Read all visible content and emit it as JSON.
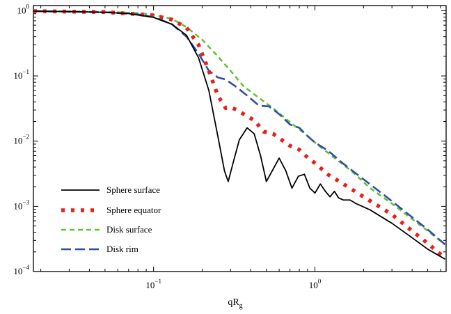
{
  "chart_data": {
    "type": "line",
    "xscale": "log",
    "yscale": "log",
    "xlim": [
      0.018,
      6.5
    ],
    "ylim": [
      0.0001,
      1.2
    ],
    "xlabel": {
      "main": "qR",
      "sub": "g"
    },
    "ylabel": "",
    "grid": false,
    "legend_position": "bottom-left",
    "x_ticks": [
      {
        "value": 0.1,
        "base": "10",
        "exp": "−1"
      },
      {
        "value": 1,
        "base": "10",
        "exp": "0"
      }
    ],
    "y_ticks": [
      {
        "value": 1,
        "base": "10",
        "exp": "0"
      },
      {
        "value": 0.1,
        "base": "10",
        "exp": "−1"
      },
      {
        "value": 0.01,
        "base": "10",
        "exp": "−2"
      },
      {
        "value": 0.001,
        "base": "10",
        "exp": "−3"
      },
      {
        "value": 0.0001,
        "base": "10",
        "exp": "−4"
      }
    ],
    "series": [
      {
        "name": "Sphere surface",
        "color": "#000000",
        "dash": "solid",
        "points": [
          [
            0.018,
            0.985
          ],
          [
            0.03,
            0.97
          ],
          [
            0.05,
            0.945
          ],
          [
            0.07,
            0.905
          ],
          [
            0.1,
            0.79
          ],
          [
            0.13,
            0.62
          ],
          [
            0.16,
            0.42
          ],
          [
            0.19,
            0.19
          ],
          [
            0.22,
            0.06
          ],
          [
            0.25,
            0.012
          ],
          [
            0.275,
            0.0035
          ],
          [
            0.29,
            0.0024
          ],
          [
            0.31,
            0.0045
          ],
          [
            0.34,
            0.0105
          ],
          [
            0.38,
            0.016
          ],
          [
            0.42,
            0.013
          ],
          [
            0.46,
            0.006
          ],
          [
            0.5,
            0.0024
          ],
          [
            0.54,
            0.0034
          ],
          [
            0.6,
            0.0055
          ],
          [
            0.66,
            0.0035
          ],
          [
            0.72,
            0.0019
          ],
          [
            0.79,
            0.0029
          ],
          [
            0.86,
            0.0031
          ],
          [
            0.93,
            0.0019
          ],
          [
            1.0,
            0.0016
          ],
          [
            1.08,
            0.0022
          ],
          [
            1.16,
            0.0017
          ],
          [
            1.24,
            0.0014
          ],
          [
            1.32,
            0.0017
          ],
          [
            1.4,
            0.00135
          ],
          [
            1.5,
            0.00125
          ],
          [
            1.65,
            0.00125
          ],
          [
            1.8,
            0.0011
          ],
          [
            2.2,
            0.00088
          ],
          [
            3,
            0.00055
          ],
          [
            4,
            0.00033
          ],
          [
            5,
            0.00022
          ],
          [
            6.4,
            0.000155
          ]
        ]
      },
      {
        "name": "Sphere equator",
        "color": "#e8201c",
        "dash": "dotted",
        "points": [
          [
            0.018,
            0.985
          ],
          [
            0.05,
            0.955
          ],
          [
            0.1,
            0.85
          ],
          [
            0.13,
            0.73
          ],
          [
            0.16,
            0.55
          ],
          [
            0.19,
            0.3
          ],
          [
            0.22,
            0.12
          ],
          [
            0.25,
            0.05
          ],
          [
            0.28,
            0.032
          ],
          [
            0.3,
            0.033
          ],
          [
            0.33,
            0.03
          ],
          [
            0.37,
            0.025
          ],
          [
            0.42,
            0.021
          ],
          [
            0.48,
            0.014
          ],
          [
            0.55,
            0.013
          ],
          [
            0.62,
            0.0105
          ],
          [
            0.7,
            0.0085
          ],
          [
            0.8,
            0.0074
          ],
          [
            0.9,
            0.0056
          ],
          [
            1.0,
            0.0046
          ],
          [
            1.2,
            0.0031
          ],
          [
            1.5,
            0.0022
          ],
          [
            2,
            0.0014
          ],
          [
            3,
            0.00075
          ],
          [
            4,
            0.00042
          ],
          [
            5,
            0.00027
          ],
          [
            6.4,
            0.00016
          ]
        ]
      },
      {
        "name": "Disk surface",
        "color": "#62c13a",
        "dash": "short",
        "points": [
          [
            0.018,
            0.985
          ],
          [
            0.05,
            0.96
          ],
          [
            0.08,
            0.92
          ],
          [
            0.1,
            0.87
          ],
          [
            0.13,
            0.75
          ],
          [
            0.16,
            0.56
          ],
          [
            0.2,
            0.36
          ],
          [
            0.25,
            0.2
          ],
          [
            0.3,
            0.12
          ],
          [
            0.36,
            0.07
          ],
          [
            0.45,
            0.046
          ],
          [
            0.55,
            0.032
          ],
          [
            0.7,
            0.0195
          ],
          [
            0.85,
            0.0135
          ],
          [
            1.0,
            0.0095
          ],
          [
            1.3,
            0.0057
          ],
          [
            1.7,
            0.0034
          ],
          [
            2.2,
            0.0019
          ],
          [
            3,
            0.0011
          ],
          [
            4,
            0.00064
          ],
          [
            5,
            0.00042
          ],
          [
            6.4,
            0.00026
          ]
        ]
      },
      {
        "name": "Disk rim",
        "color": "#2f4da6",
        "dash": "long",
        "points": [
          [
            0.018,
            0.985
          ],
          [
            0.05,
            0.95
          ],
          [
            0.08,
            0.88
          ],
          [
            0.1,
            0.8
          ],
          [
            0.13,
            0.62
          ],
          [
            0.16,
            0.4
          ],
          [
            0.19,
            0.22
          ],
          [
            0.22,
            0.12
          ],
          [
            0.25,
            0.095
          ],
          [
            0.28,
            0.088
          ],
          [
            0.32,
            0.07
          ],
          [
            0.38,
            0.05
          ],
          [
            0.45,
            0.035
          ],
          [
            0.52,
            0.034
          ],
          [
            0.6,
            0.026
          ],
          [
            0.7,
            0.018
          ],
          [
            0.8,
            0.016
          ],
          [
            0.9,
            0.012
          ],
          [
            1.0,
            0.0095
          ],
          [
            1.2,
            0.0072
          ],
          [
            1.5,
            0.0045
          ],
          [
            2,
            0.0026
          ],
          [
            2.5,
            0.0017
          ],
          [
            3,
            0.0012
          ],
          [
            4,
            0.00068
          ],
          [
            5,
            0.00044
          ],
          [
            6.4,
            0.00026
          ]
        ]
      }
    ]
  }
}
